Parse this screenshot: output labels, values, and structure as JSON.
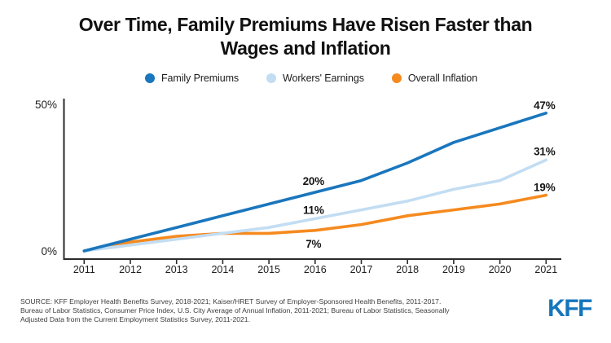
{
  "title": {
    "line1": "Over Time, Family Premiums Have Risen Faster than",
    "line2": "Wages and Inflation"
  },
  "legend": {
    "items": [
      {
        "label": "Family Premiums",
        "color": "#1a76bd"
      },
      {
        "label": "Workers' Earnings",
        "color": "#c3ddf2"
      },
      {
        "label": "Overall Inflation",
        "color": "#f58a1f"
      }
    ]
  },
  "chart_data": {
    "type": "line",
    "title": "Over Time, Family Premiums Have Risen Faster than Wages and Inflation",
    "x": [
      2011,
      2012,
      2013,
      2014,
      2015,
      2016,
      2017,
      2018,
      2019,
      2020,
      2021
    ],
    "xlabel": "",
    "ylabel": "",
    "ylim": [
      0,
      50
    ],
    "grid": false,
    "legend_position": "top",
    "yticks": [
      {
        "label": "50%",
        "value": 50
      },
      {
        "label": "0%",
        "value": 0
      }
    ],
    "series": [
      {
        "name": "Family Premiums",
        "color": "#1a76bd",
        "values": [
          0,
          4,
          8,
          12,
          16,
          20,
          24,
          30,
          37,
          42,
          47
        ]
      },
      {
        "name": "Workers' Earnings",
        "color": "#c3ddf2",
        "values": [
          0,
          2,
          4,
          6,
          8,
          11,
          14,
          17,
          21,
          24,
          31
        ]
      },
      {
        "name": "Overall Inflation",
        "color": "#f58a1f",
        "values": [
          0,
          3,
          5,
          6,
          6,
          7,
          9,
          12,
          14,
          16,
          19
        ]
      }
    ],
    "annotations": [
      {
        "series": "Family Premiums",
        "year": 2016,
        "text": "20%",
        "dy": -9
      },
      {
        "series": "Workers' Earnings",
        "year": 2016,
        "text": "11%",
        "dy": -6
      },
      {
        "series": "Overall Inflation",
        "year": 2016,
        "text": "7%",
        "dy": 21
      },
      {
        "series": "Family Premiums",
        "year": 2021,
        "text": "47%",
        "dy": -5
      },
      {
        "series": "Workers' Earnings",
        "year": 2021,
        "text": "31%",
        "dy": -6
      },
      {
        "series": "Overall Inflation",
        "year": 2021,
        "text": "19%",
        "dy": -5
      }
    ]
  },
  "source": {
    "label": "SOURCE: KFF Employer Health Benefits Survey, 2018-2021; Kaiser/HRET Survey of Employer-Sponsored Health Benefits, 2011-2017. Bureau of Labor Statistics, Consumer Price Index, U.S. City Average of Annual Inflation, 2011-2021; Bureau of Labor Statistics, Seasonally Adjusted Data from the Current Employment Statistics Survey, 2011-2021."
  },
  "logo": {
    "text": "KFF",
    "color": "#1576bc"
  }
}
